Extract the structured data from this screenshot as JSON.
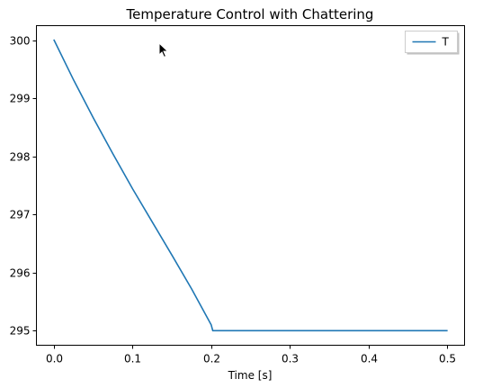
{
  "chart_data": {
    "type": "line",
    "title": "Temperature Control with Chattering",
    "xlabel": "Time [s]",
    "ylabel": "",
    "xlim": [
      -0.0225,
      0.5225
    ],
    "ylim": [
      294.75,
      300.25
    ],
    "x_ticks": [
      0.0,
      0.1,
      0.2,
      0.3,
      0.4,
      0.5
    ],
    "x_tick_labels": [
      "0.0",
      "0.1",
      "0.2",
      "0.3",
      "0.4",
      "0.5"
    ],
    "y_ticks": [
      295,
      296,
      297,
      298,
      299,
      300
    ],
    "y_tick_labels": [
      "295",
      "296",
      "297",
      "298",
      "299",
      "300"
    ],
    "grid": false,
    "legend_position": "top-right",
    "series": [
      {
        "name": "T",
        "color": "#1f77b4",
        "x": [
          0.0,
          0.025,
          0.05,
          0.075,
          0.1,
          0.125,
          0.15,
          0.175,
          0.2,
          0.202,
          0.25,
          0.3,
          0.35,
          0.4,
          0.45,
          0.5
        ],
        "y": [
          300.0,
          299.31,
          298.66,
          298.04,
          297.44,
          296.87,
          296.3,
          295.72,
          295.1,
          295.0,
          295.0,
          295.0,
          295.0,
          295.0,
          295.0,
          295.0
        ]
      }
    ]
  }
}
